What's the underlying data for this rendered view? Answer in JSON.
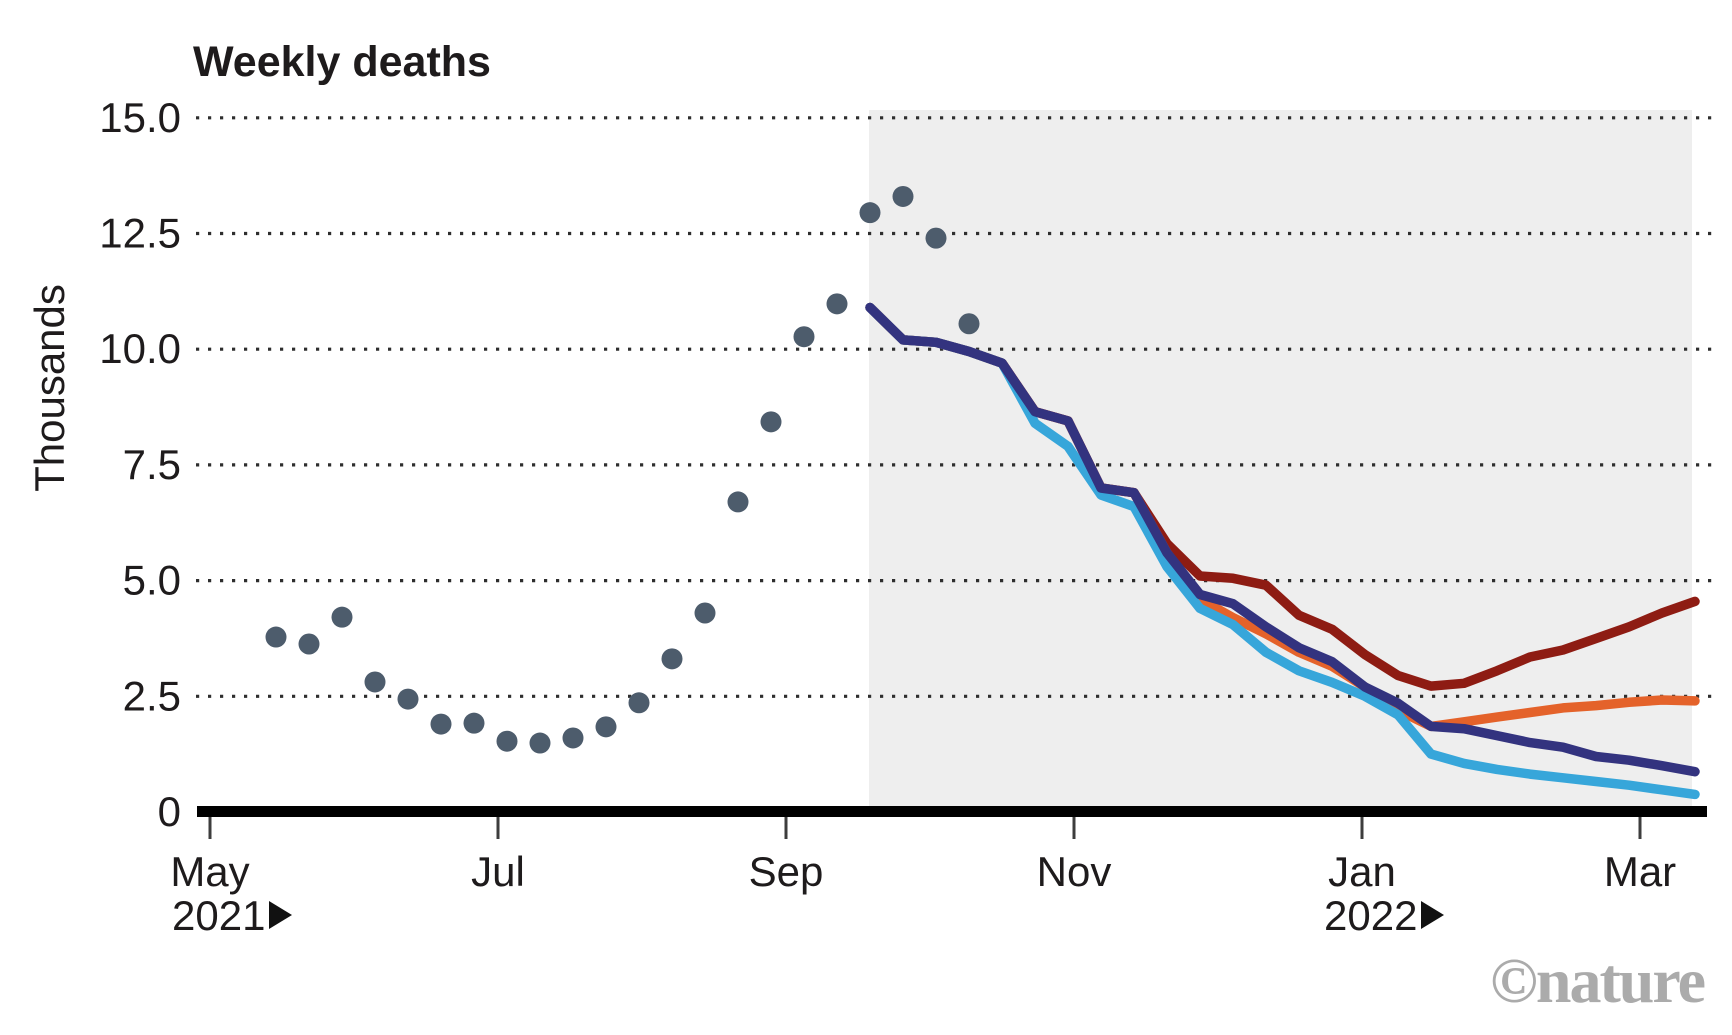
{
  "chart_data": {
    "type": "line",
    "title": "Weekly deaths",
    "ylabel": "Thousands",
    "ylim": [
      0,
      15
    ],
    "y_tick_labels": [
      "0",
      "2.5",
      "5.0",
      "7.5",
      "10.0",
      "12.5",
      "15.0"
    ],
    "x_tick_labels": [
      "May",
      "Jul",
      "Sep",
      "Nov",
      "Jan",
      "Mar"
    ],
    "x_year_labels": [
      {
        "label": "2021",
        "under": "May"
      },
      {
        "label": "2022",
        "under": "Jan"
      }
    ],
    "x_unit": "weeks, first observed point = week 0 (mid-May 2021)",
    "grid": {
      "color": "#2e2e2e",
      "style": "dotted"
    },
    "axis_color": "#000000",
    "tick_color": "#3d3d3d",
    "observed": {
      "name": "reported-weekly-deaths",
      "color": "#4d5c6c",
      "start_week": 0,
      "values": [
        3.78,
        3.63,
        4.21,
        2.81,
        2.44,
        1.9,
        1.92,
        1.53,
        1.49,
        1.6,
        1.84,
        2.36,
        3.31,
        4.3,
        6.7,
        8.43,
        10.27,
        10.98,
        12.95,
        13.3,
        12.4,
        10.55
      ]
    },
    "forecast_band": {
      "name": "forecast-period",
      "color": "#eeeeee",
      "start_week": 18,
      "end_week": 43
    },
    "series": [
      {
        "name": "forecast-dark-red",
        "color": "#8e1c13",
        "start_week": 18,
        "values": [
          10.9,
          10.2,
          10.15,
          9.95,
          9.7,
          8.65,
          8.45,
          7.0,
          6.9,
          5.8,
          5.1,
          5.05,
          4.9,
          4.25,
          3.95,
          3.4,
          2.95,
          2.72,
          2.78,
          3.05,
          3.35,
          3.5,
          3.75,
          4.0,
          4.3,
          4.55
        ]
      },
      {
        "name": "forecast-orange",
        "color": "#e4622a",
        "start_week": 18,
        "values": [
          10.9,
          10.2,
          10.15,
          9.95,
          9.7,
          8.65,
          8.45,
          7.0,
          6.9,
          5.6,
          4.6,
          4.2,
          3.85,
          3.45,
          3.15,
          2.7,
          2.2,
          1.85,
          1.95,
          2.05,
          2.15,
          2.25,
          2.3,
          2.37,
          2.42,
          2.4
        ]
      },
      {
        "name": "forecast-light-blue",
        "color": "#37a6da",
        "start_week": 18,
        "values": [
          10.9,
          10.2,
          10.15,
          9.95,
          9.7,
          8.4,
          7.9,
          6.85,
          6.6,
          5.3,
          4.4,
          4.05,
          3.45,
          3.05,
          2.8,
          2.5,
          2.1,
          1.25,
          1.05,
          0.92,
          0.82,
          0.74,
          0.66,
          0.58,
          0.48,
          0.38
        ]
      },
      {
        "name": "forecast-navy",
        "color": "#33337f",
        "start_week": 18,
        "values": [
          10.9,
          10.2,
          10.15,
          9.95,
          9.7,
          8.65,
          8.45,
          7.0,
          6.9,
          5.6,
          4.7,
          4.5,
          4.0,
          3.55,
          3.25,
          2.7,
          2.35,
          1.85,
          1.8,
          1.65,
          1.5,
          1.4,
          1.2,
          1.12,
          1.0,
          0.87
        ]
      }
    ]
  },
  "branding": {
    "logo": "©nature",
    "color": "#ababab"
  }
}
